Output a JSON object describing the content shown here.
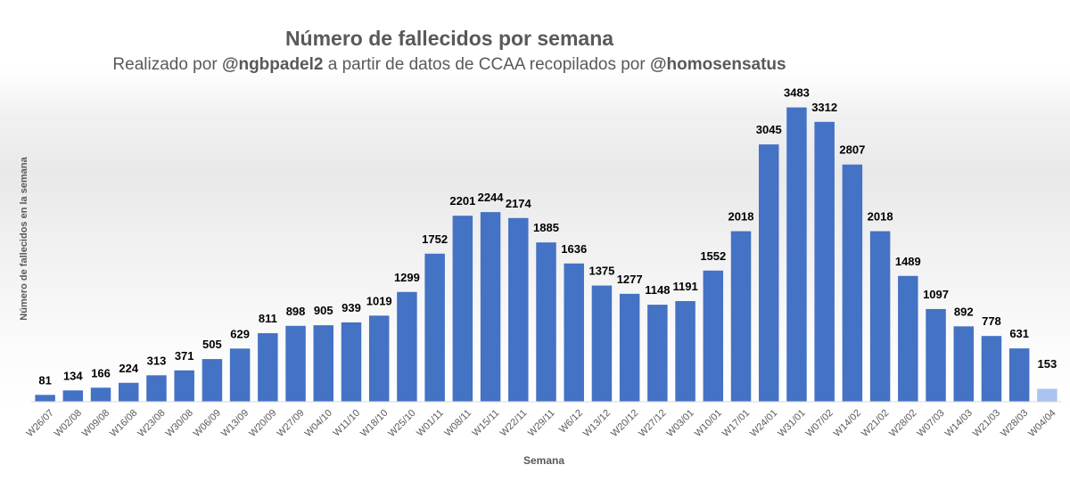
{
  "chart_data": {
    "type": "bar",
    "title": "Número de fallecidos por semana",
    "subtitle_parts": {
      "prefix": "Realizado por ",
      "author": "@ngbpadel2",
      "middle": " a partir de datos de CCAA recopilados por ",
      "source": "@homosensatus"
    },
    "xlabel": "Semana",
    "ylabel": "Número de fallecidos en la semana",
    "ylim": [
      0,
      3700
    ],
    "grid": false,
    "bar_color": "#4472C4",
    "last_bar_color": "#A9C4EE",
    "label_color": "#000000",
    "axis_text_color": "#595959",
    "categories": [
      "W26/07",
      "W02/08",
      "W09/08",
      "W16/08",
      "W23/08",
      "W30/08",
      "W06/09",
      "W13/09",
      "W20/09",
      "W27/09",
      "W04/10",
      "W11/10",
      "W18/10",
      "W25/10",
      "W01/11",
      "W08/11",
      "W15/11",
      "W22/11",
      "W29/11",
      "W6/12",
      "W13/12",
      "W20/12",
      "W27/12",
      "W03/01",
      "W10/01",
      "W17/01",
      "W24/01",
      "W31/01",
      "W07/02",
      "W14/02",
      "W21/02",
      "W28/02",
      "W07/03",
      "W14/03",
      "W21/03",
      "W28/03",
      "W04/04"
    ],
    "values": [
      81,
      134,
      166,
      224,
      313,
      371,
      505,
      629,
      811,
      898,
      905,
      939,
      1019,
      1299,
      1752,
      2201,
      2244,
      2174,
      1885,
      1636,
      1375,
      1277,
      1148,
      1191,
      1552,
      2018,
      3045,
      3483,
      3312,
      2807,
      2018,
      1489,
      1097,
      892,
      778,
      631,
      153
    ]
  }
}
